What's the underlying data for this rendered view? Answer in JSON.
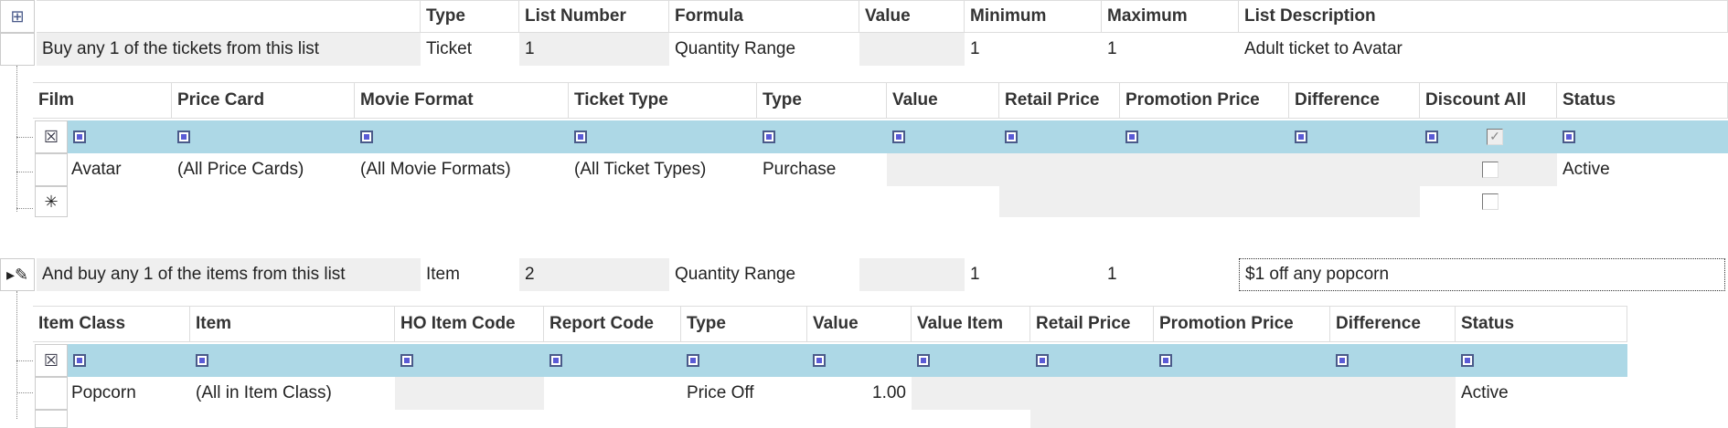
{
  "master": {
    "columns": [
      "",
      "Type",
      "List Number",
      "Formula",
      "Value",
      "Minimum",
      "Maximum",
      "List Description"
    ],
    "rows": [
      {
        "description": "Buy any 1 of the tickets from this list",
        "type": "Ticket",
        "list_number": "1",
        "formula": "Quantity Range",
        "value": "",
        "minimum": "1",
        "maximum": "1",
        "list_description": "Adult ticket to Avatar"
      },
      {
        "description": "And buy any 1 of the items from this list",
        "type": "Item",
        "list_number": "2",
        "formula": "Quantity Range",
        "value": "",
        "minimum": "1",
        "maximum": "1",
        "list_description": "$1 off any popcorn"
      }
    ]
  },
  "tickets": {
    "columns": [
      "Film",
      "Price Card",
      "Movie Format",
      "Ticket Type",
      "Type",
      "Value",
      "Retail Price",
      "Promotion Price",
      "Difference",
      "Discount All",
      "Status"
    ],
    "rows": [
      [
        "Avatar",
        "(All Price Cards)",
        "(All Movie Formats)",
        "(All Ticket Types)",
        "Purchase",
        "",
        "",
        "",
        "",
        "",
        "Active"
      ]
    ],
    "discount_all_checked": [
      false
    ],
    "new_row_symbol": "✳"
  },
  "items": {
    "columns": [
      "Item Class",
      "Item",
      "HO Item Code",
      "Report Code",
      "Type",
      "Value",
      "Value Item",
      "Retail Price",
      "Promotion Price",
      "Difference",
      "Status"
    ],
    "rows": [
      [
        "Popcorn",
        "(All in Item Class)",
        "",
        "",
        "Price Off",
        "1.00",
        "",
        "",
        "",
        "",
        "Active"
      ]
    ]
  },
  "colors": {
    "filter_row": "#add8e6",
    "readonly_cell": "#efefef"
  }
}
